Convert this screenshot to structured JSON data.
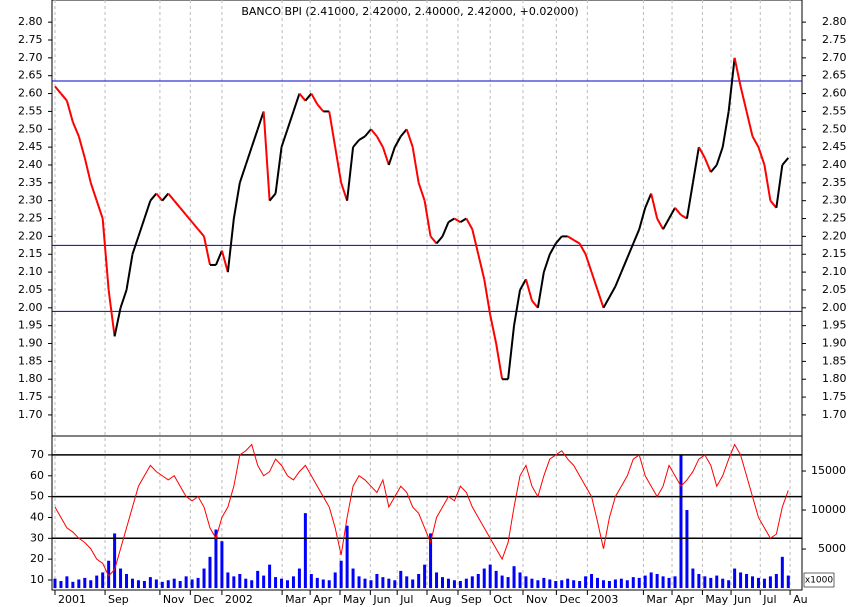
{
  "chart_data": {
    "type": "stock",
    "title": "BANCO BPI (2.41000, 2.42000, 2.40000, 2.42000, +0.02000)",
    "xlim": [
      -0.5,
      125.3
    ],
    "xticks": [
      {
        "value": 0,
        "label": "2001"
      },
      {
        "value": 8.4,
        "label": "Sep"
      },
      {
        "value": 17.6,
        "label": "Nov"
      },
      {
        "value": 22.7,
        "label": "Dec"
      },
      {
        "value": 28,
        "label": "2002"
      },
      {
        "value": 38.1,
        "label": "Mar"
      },
      {
        "value": 42.8,
        "label": "Apr"
      },
      {
        "value": 47.8,
        "label": "May"
      },
      {
        "value": 52.9,
        "label": "Jun"
      },
      {
        "value": 57.4,
        "label": "Jul"
      },
      {
        "value": 62.4,
        "label": "Aug"
      },
      {
        "value": 67.6,
        "label": "Sep"
      },
      {
        "value": 73,
        "label": "Oct"
      },
      {
        "value": 78.5,
        "label": "Nov"
      },
      {
        "value": 84.1,
        "label": "Dec"
      },
      {
        "value": 89.3,
        "label": "2003"
      },
      {
        "value": 98.7,
        "label": "Mar"
      },
      {
        "value": 103.5,
        "label": "Apr"
      },
      {
        "value": 108.6,
        "label": "May"
      },
      {
        "value": 113.4,
        "label": "Jun"
      },
      {
        "value": 118.3,
        "label": "Jul"
      },
      {
        "value": 123.3,
        "label": "Au"
      }
    ],
    "ylim": [
      1.641,
      2.862
    ],
    "yticks": [
      {
        "value": 1.7,
        "label": "1.70"
      },
      {
        "value": 1.75,
        "label": "1.75"
      },
      {
        "value": 1.8,
        "label": "1.80"
      },
      {
        "value": 1.85,
        "label": "1.85"
      },
      {
        "value": 1.9,
        "label": "1.90"
      },
      {
        "value": 1.95,
        "label": "1.95"
      },
      {
        "value": 2.0,
        "label": "2.00"
      },
      {
        "value": 2.05,
        "label": "2.05"
      },
      {
        "value": 2.1,
        "label": "2.10"
      },
      {
        "value": 2.15,
        "label": "2.15"
      },
      {
        "value": 2.2,
        "label": "2.20"
      },
      {
        "value": 2.25,
        "label": "2.25"
      },
      {
        "value": 2.3,
        "label": "2.30"
      },
      {
        "value": 2.35,
        "label": "2.35"
      },
      {
        "value": 2.4,
        "label": "2.40"
      },
      {
        "value": 2.45,
        "label": "2.45"
      },
      {
        "value": 2.5,
        "label": "2.50"
      },
      {
        "value": 2.55,
        "label": "2.55"
      },
      {
        "value": 2.6,
        "label": "2.60"
      },
      {
        "value": 2.65,
        "label": "2.65"
      },
      {
        "value": 2.7,
        "label": "2.70"
      },
      {
        "value": 2.75,
        "label": "2.75"
      },
      {
        "value": 2.8,
        "label": "2.80"
      }
    ],
    "hlines": [
      2.635,
      2.175,
      1.99
    ],
    "hline_color": "#0000cc",
    "up_color": "#000000",
    "down_color": "#ff0000",
    "price": [
      2.62,
      2.6,
      2.58,
      2.52,
      2.48,
      2.42,
      2.35,
      2.3,
      2.25,
      2.05,
      1.92,
      2.0,
      2.05,
      2.15,
      2.2,
      2.25,
      2.3,
      2.32,
      2.3,
      2.32,
      2.3,
      2.28,
      2.26,
      2.24,
      2.22,
      2.2,
      2.12,
      2.12,
      2.16,
      2.1,
      2.25,
      2.35,
      2.4,
      2.45,
      2.5,
      2.55,
      2.3,
      2.32,
      2.45,
      2.5,
      2.55,
      2.6,
      2.58,
      2.6,
      2.57,
      2.55,
      2.55,
      2.45,
      2.35,
      2.3,
      2.45,
      2.47,
      2.48,
      2.5,
      2.48,
      2.45,
      2.4,
      2.45,
      2.48,
      2.5,
      2.45,
      2.35,
      2.3,
      2.2,
      2.18,
      2.2,
      2.24,
      2.25,
      2.24,
      2.25,
      2.22,
      2.15,
      2.08,
      1.98,
      1.9,
      1.8,
      1.8,
      1.95,
      2.05,
      2.08,
      2.02,
      2.0,
      2.1,
      2.15,
      2.18,
      2.2,
      2.2,
      2.19,
      2.18,
      2.15,
      2.1,
      2.05,
      2.0,
      2.03,
      2.06,
      2.1,
      2.14,
      2.18,
      2.22,
      2.28,
      2.32,
      2.25,
      2.22,
      2.25,
      2.28,
      2.26,
      2.25,
      2.35,
      2.45,
      2.42,
      2.38,
      2.4,
      2.45,
      2.55,
      2.7,
      2.62,
      2.55,
      2.48,
      2.45,
      2.4,
      2.3,
      2.28,
      2.4,
      2.42
    ],
    "rsi_ylim": [
      5.2,
      78.6
    ],
    "rsi_yticks": [
      10,
      20,
      30,
      40,
      50,
      60,
      70
    ],
    "rsi_levels": [
      70,
      50,
      30
    ],
    "rsi_color": "#ff0000",
    "rsi": [
      45,
      40,
      35,
      33,
      30,
      28,
      25,
      20,
      18,
      12,
      15,
      25,
      35,
      45,
      55,
      60,
      65,
      62,
      60,
      58,
      60,
      55,
      50,
      48,
      50,
      45,
      35,
      30,
      40,
      45,
      55,
      70,
      72,
      75,
      65,
      60,
      62,
      68,
      65,
      60,
      58,
      62,
      65,
      60,
      55,
      50,
      45,
      35,
      22,
      40,
      55,
      60,
      58,
      55,
      52,
      58,
      45,
      50,
      55,
      52,
      45,
      42,
      35,
      28,
      40,
      45,
      50,
      48,
      55,
      52,
      45,
      40,
      35,
      30,
      25,
      20,
      28,
      45,
      60,
      65,
      55,
      50,
      60,
      68,
      70,
      72,
      68,
      65,
      60,
      55,
      50,
      38,
      25,
      40,
      50,
      55,
      60,
      68,
      70,
      60,
      55,
      50,
      55,
      65,
      60,
      55,
      58,
      62,
      68,
      70,
      65,
      55,
      60,
      68,
      75,
      70,
      60,
      50,
      40,
      35,
      30,
      32,
      45,
      53
    ],
    "y2lim": [
      -250,
      19360
    ],
    "y2ticks": [
      5000,
      10000,
      15000
    ],
    "y2_unit": "x1000",
    "volume_color": "#0000ff",
    "volume": [
      1200,
      900,
      1500,
      800,
      1100,
      1300,
      1000,
      1600,
      2000,
      3500,
      7000,
      2500,
      1800,
      1200,
      1000,
      900,
      1400,
      1100,
      800,
      1000,
      1200,
      900,
      1500,
      1100,
      1300,
      2500,
      4000,
      7500,
      6000,
      2000,
      1500,
      1800,
      1200,
      1000,
      2200,
      1600,
      3000,
      1400,
      1200,
      1000,
      1500,
      2500,
      9600,
      1800,
      1300,
      1100,
      1000,
      2000,
      3500,
      8000,
      2500,
      1500,
      1200,
      1000,
      1800,
      1400,
      1200,
      1000,
      2200,
      1500,
      1100,
      1800,
      3000,
      7000,
      2000,
      1400,
      1200,
      1000,
      900,
      1200,
      1500,
      1800,
      2500,
      3000,
      2200,
      1600,
      1400,
      2800,
      2000,
      1500,
      1200,
      1000,
      1300,
      1100,
      900,
      1000,
      1200,
      1000,
      900,
      1500,
      1800,
      1300,
      1000,
      900,
      1100,
      1200,
      1000,
      1400,
      1300,
      1600,
      2000,
      1800,
      1500,
      1300,
      1500,
      17000,
      10000,
      2500,
      1800,
      1500,
      1300,
      1600,
      1200,
      1000,
      2500,
      2000,
      1800,
      1500,
      1300,
      1200,
      1500,
      1800,
      4000,
      1600
    ]
  }
}
